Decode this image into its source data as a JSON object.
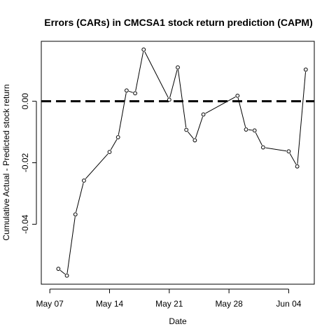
{
  "chart_data": {
    "type": "line",
    "title": "Errors (CARs) in CMCSA1 stock return prediction (CAPM)",
    "xlabel": "Date",
    "ylabel": "Cumulative Actual - Predicted stock return",
    "x_ticks": [
      {
        "label": "May 07",
        "date": "2018-05-07"
      },
      {
        "label": "May 14",
        "date": "2018-05-14"
      },
      {
        "label": "May 21",
        "date": "2018-05-21"
      },
      {
        "label": "May 28",
        "date": "2018-05-28"
      },
      {
        "label": "Jun 04",
        "date": "2018-06-04"
      }
    ],
    "y_ticks": [
      {
        "label": "0.00",
        "value": 0.0
      },
      {
        "label": "-0.02",
        "value": -0.02
      },
      {
        "label": "-0.04",
        "value": -0.04
      }
    ],
    "xlim": [
      "2018-05-06",
      "2018-06-07"
    ],
    "ylim": [
      -0.0595,
      0.0195
    ],
    "grid": false,
    "reference_line": {
      "y": 0.0,
      "style": "dashed",
      "color": "#000000"
    },
    "series": [
      {
        "points": [
          {
            "x": "2018-05-08",
            "y": -0.0545
          },
          {
            "x": "2018-05-09",
            "y": -0.0567
          },
          {
            "x": "2018-05-10",
            "y": -0.0368
          },
          {
            "x": "2018-05-11",
            "y": -0.0258
          },
          {
            "x": "2018-05-14",
            "y": -0.0165
          },
          {
            "x": "2018-05-15",
            "y": -0.0117
          },
          {
            "x": "2018-05-16",
            "y": 0.0035
          },
          {
            "x": "2018-05-17",
            "y": 0.0026
          },
          {
            "x": "2018-05-18",
            "y": 0.0168
          },
          {
            "x": "2018-05-21",
            "y": 0.0005
          },
          {
            "x": "2018-05-22",
            "y": 0.011
          },
          {
            "x": "2018-05-23",
            "y": -0.0093
          },
          {
            "x": "2018-05-24",
            "y": -0.0127
          },
          {
            "x": "2018-05-25",
            "y": -0.0043
          },
          {
            "x": "2018-05-29",
            "y": 0.0018
          },
          {
            "x": "2018-05-30",
            "y": -0.0092
          },
          {
            "x": "2018-05-31",
            "y": -0.0095
          },
          {
            "x": "2018-06-01",
            "y": -0.015
          },
          {
            "x": "2018-06-04",
            "y": -0.0163
          },
          {
            "x": "2018-06-05",
            "y": -0.0212
          },
          {
            "x": "2018-06-06",
            "y": 0.0103
          }
        ],
        "color": "#000000",
        "marker": "open-circle"
      }
    ]
  }
}
